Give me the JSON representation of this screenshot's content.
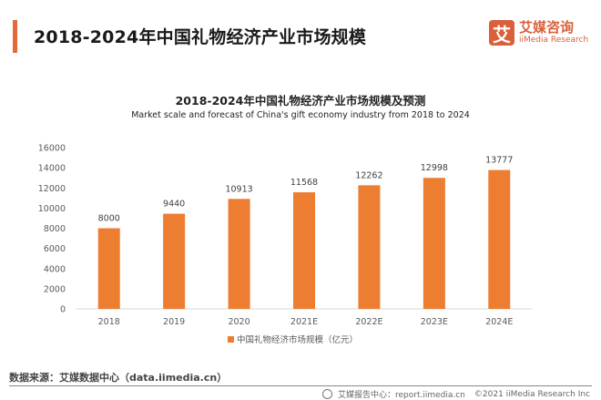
{
  "header": {
    "title": "2018-2024年中国礼物经济产业市场规模",
    "accent_color": "#e46a3a"
  },
  "logo": {
    "mark": "艾",
    "name_cn": "艾媒咨询",
    "name_en": "iiMedia Research",
    "color": "#d9603a"
  },
  "chart_data": {
    "type": "bar",
    "title": "2018-2024年中国礼物经济产业市场规模及预测",
    "subtitle": "Market scale and forecast of China's gift economy industry from 2018 to 2024",
    "categories": [
      "2018",
      "2019",
      "2020",
      "2021E",
      "2022E",
      "2023E",
      "2024E"
    ],
    "series": [
      {
        "name": "中国礼物经济市场规模（亿元）",
        "values": [
          8000,
          9440,
          10913,
          11568,
          12262,
          12998,
          13777
        ],
        "color": "#ed7d31"
      }
    ],
    "data_labels": [
      "8000",
      "9440",
      "10913",
      "11568",
      "12262",
      "12998",
      "13777"
    ],
    "xlabel": "",
    "ylabel": "",
    "ylim": [
      0,
      16000
    ],
    "yticks": [
      0,
      2000,
      4000,
      6000,
      8000,
      10000,
      12000,
      14000,
      16000
    ],
    "grid": false,
    "legend_position": "bottom-center"
  },
  "footer": {
    "source": "数据来源：艾媒数据中心（data.iimedia.cn）",
    "report_center": "艾媒报告中心：report.iimedia.cn",
    "copyright": "©2021  iiMedia Research  Inc"
  }
}
